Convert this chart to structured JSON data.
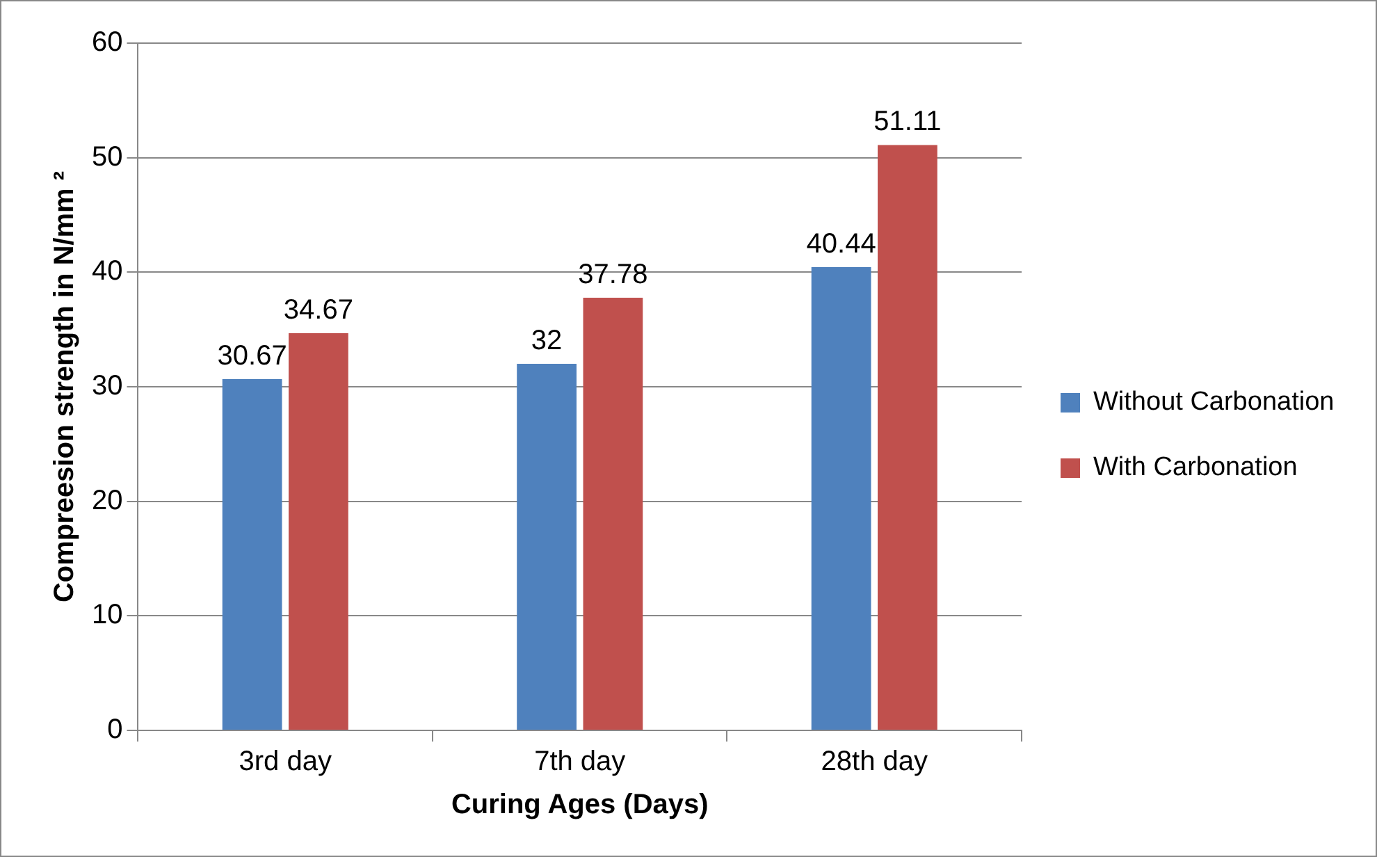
{
  "chart_data": {
    "type": "bar",
    "xlabel": "Curing Ages (Days)",
    "ylabel": "Compreesion strength in N/mm ²",
    "categories": [
      "3rd day",
      "7th day",
      "28th day"
    ],
    "series": [
      {
        "name": "Without Carbonation",
        "color": "#4f81bd",
        "values": [
          30.67,
          32,
          40.44
        ]
      },
      {
        "name": "With Carbonation",
        "color": "#c0504d",
        "values": [
          34.67,
          37.78,
          51.11
        ]
      }
    ],
    "ylim": [
      0,
      60
    ],
    "yticks": [
      0,
      10,
      20,
      30,
      40,
      50,
      60
    ],
    "grid": "y",
    "legend": "right",
    "data_labels": true
  }
}
